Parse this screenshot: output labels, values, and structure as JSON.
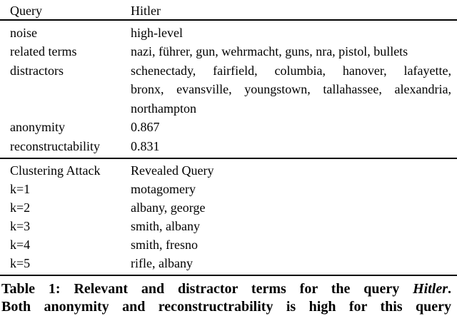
{
  "colors": {
    "text": "#000000",
    "background": "#ffffff",
    "rule": "#000000"
  },
  "table": {
    "header": {
      "col1": "Query",
      "col2": "Hitler"
    },
    "rows": [
      {
        "label": "noise",
        "value": "high-level"
      },
      {
        "label": "related terms",
        "value": "nazi, führer, gun, wehrmacht, guns, nra, pistol, bullets"
      },
      {
        "label": "distractors",
        "value_lines": [
          "schenectady, fairfield, columbia, hanover, lafayette,",
          "bronx, evansville, youngstown, tallahassee, alexandria,",
          "northampton"
        ]
      },
      {
        "label": "anonymity",
        "value": "0.867"
      },
      {
        "label": "reconstructability",
        "value": "0.831"
      }
    ],
    "section2": {
      "header": {
        "col1": "Clustering Attack",
        "col2": "Revealed Query"
      },
      "rows": [
        {
          "label": "k=1",
          "value": "motagomery"
        },
        {
          "label": "k=2",
          "value": "albany, george"
        },
        {
          "label": "k=3",
          "value": "smith, albany"
        },
        {
          "label": "k=4",
          "value": "smith, fresno"
        },
        {
          "label": "k=5",
          "value": "rifle, albany"
        }
      ]
    }
  },
  "caption": {
    "line1_prefix": "Table 1: Relevant and distractor terms for the query",
    "line1_italic": "Hitler",
    "line1_suffix": ".",
    "line2": "Both anonymity and reconstructrability is high for this query"
  }
}
